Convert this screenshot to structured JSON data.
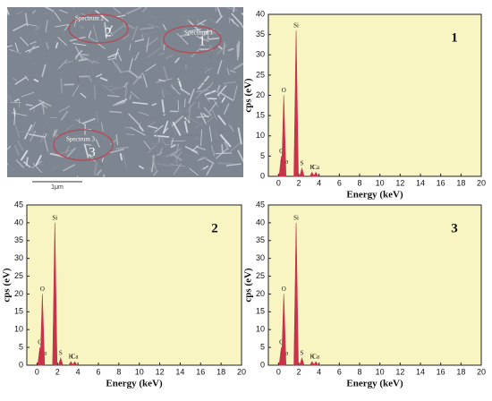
{
  "sem_image": {
    "spots": [
      {
        "name": "Spectrum 2",
        "number": "2"
      },
      {
        "name": "Spectrum 1",
        "number": "1"
      },
      {
        "name": "Spectrum 3",
        "number": "3"
      }
    ],
    "scale_bar": "1μm"
  },
  "chart_data": [
    {
      "type": "spectrum",
      "label": "1",
      "xlabel": "Energy (keV)",
      "ylabel": "cps (eV)",
      "xlim": [
        -1,
        20
      ],
      "ylim": [
        0,
        40
      ],
      "xticks": [
        0,
        2,
        4,
        6,
        8,
        10,
        12,
        14,
        16,
        18,
        20
      ],
      "yticks": [
        0,
        5,
        10,
        15,
        20,
        25,
        30,
        35,
        40
      ],
      "x": [
        0.28,
        0.34,
        0.52,
        1.74,
        2.31,
        3.31,
        3.69
      ],
      "values": [
        5,
        2.5,
        20,
        36,
        2,
        1,
        1
      ],
      "peak_labels": [
        "C",
        "Ca",
        "O",
        "Si",
        "S",
        "K",
        "Ca"
      ],
      "color": "#c8324a",
      "background": "#f8f5c2"
    },
    {
      "type": "spectrum",
      "label": "2",
      "xlabel": "Energy (keV)",
      "ylabel": "cps (eV)",
      "xlim": [
        -1,
        20
      ],
      "ylim": [
        0,
        45
      ],
      "xticks": [
        0,
        2,
        4,
        6,
        8,
        10,
        12,
        14,
        16,
        18,
        20
      ],
      "yticks": [
        0,
        5,
        10,
        15,
        20,
        25,
        30,
        35,
        40,
        45
      ],
      "x": [
        0.28,
        0.34,
        0.52,
        1.74,
        2.31,
        3.31,
        3.69
      ],
      "values": [
        5,
        2,
        20,
        40,
        2,
        1,
        1
      ],
      "peak_labels": [
        "C",
        "Ca",
        "O",
        "Si",
        "S",
        "K",
        "Ca"
      ],
      "color": "#c8324a",
      "background": "#f8f5c2"
    },
    {
      "type": "spectrum",
      "label": "3",
      "xlabel": "Energy (keV)",
      "ylabel": "cps (eV)",
      "xlim": [
        -1,
        20
      ],
      "ylim": [
        0,
        45
      ],
      "xticks": [
        0,
        2,
        4,
        6,
        8,
        10,
        12,
        14,
        16,
        18,
        20
      ],
      "yticks": [
        0,
        5,
        10,
        15,
        20,
        25,
        30,
        35,
        40,
        45
      ],
      "x": [
        0.28,
        0.34,
        0.52,
        1.74,
        2.31,
        3.31,
        3.69
      ],
      "values": [
        5,
        2,
        20,
        40,
        2,
        1,
        1
      ],
      "peak_labels": [
        "C",
        "Ca",
        "O",
        "Si",
        "S",
        "K",
        "Ca"
      ],
      "color": "#c8324a",
      "background": "#f8f5c2"
    }
  ]
}
